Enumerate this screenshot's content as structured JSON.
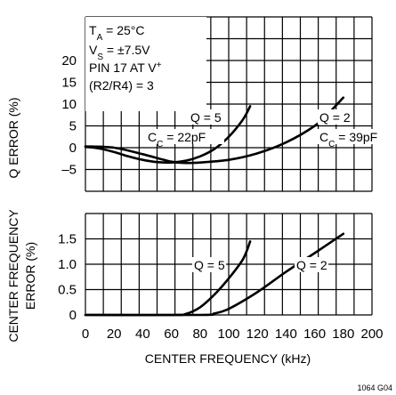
{
  "figure_code": "1064 G04",
  "chart_data": [
    {
      "type": "line",
      "panel": "top",
      "ylabel": "Q ERROR (%)",
      "xlabel": "",
      "xlim": [
        0,
        200
      ],
      "ylim": [
        -10,
        30
      ],
      "yticks": [
        "20",
        "15",
        "10",
        "5",
        "0",
        "–5"
      ],
      "ytick_values": [
        20,
        15,
        10,
        5,
        0,
        -5
      ],
      "grid": true,
      "conditions": [
        "TA = 25°C",
        "VS = ±7.5V",
        "PIN 17 AT V+",
        "(R2/R4) = 3"
      ],
      "series": [
        {
          "name": "Q = 5",
          "sublabel": "CC = 22pF",
          "x": [
            0,
            10,
            20,
            30,
            40,
            50,
            60,
            70,
            80,
            90,
            100,
            110,
            115
          ],
          "y": [
            0.2,
            -0.2,
            -1.0,
            -2.0,
            -2.8,
            -3.3,
            -3.4,
            -3.0,
            -2.0,
            -0.3,
            2.5,
            6.5,
            9.5
          ]
        },
        {
          "name": "Q = 2",
          "sublabel": "CC = 39pF",
          "x": [
            0,
            20,
            40,
            60,
            70,
            80,
            100,
            120,
            140,
            160,
            170,
            180
          ],
          "y": [
            0.3,
            0.0,
            -1.5,
            -3.2,
            -3.5,
            -3.4,
            -2.8,
            -1.3,
            1.2,
            5.0,
            8.0,
            11.5
          ]
        }
      ]
    },
    {
      "type": "line",
      "panel": "bottom",
      "ylabel": "CENTER FREQUENCY ERROR (%)",
      "xlabel": "CENTER FREQUENCY (kHz)",
      "xlim": [
        0,
        200
      ],
      "ylim": [
        0,
        2.0
      ],
      "xticks": [
        "0",
        "20",
        "40",
        "60",
        "80",
        "100",
        "120",
        "140",
        "160",
        "180",
        "200"
      ],
      "xtick_values": [
        0,
        20,
        40,
        60,
        80,
        100,
        120,
        140,
        160,
        180,
        200
      ],
      "yticks": [
        "1.5",
        "1.0",
        "0.5",
        "0"
      ],
      "ytick_values": [
        1.5,
        1.0,
        0.5,
        0
      ],
      "grid": true,
      "series": [
        {
          "name": "Q = 5",
          "x": [
            0,
            60,
            70,
            80,
            90,
            100,
            110,
            115
          ],
          "y": [
            0,
            0,
            0.02,
            0.15,
            0.4,
            0.72,
            1.1,
            1.45
          ]
        },
        {
          "name": "Q = 2",
          "x": [
            0,
            80,
            90,
            100,
            120,
            140,
            160,
            180
          ],
          "y": [
            0,
            0,
            0.03,
            0.12,
            0.45,
            0.85,
            1.22,
            1.6
          ]
        }
      ]
    }
  ]
}
